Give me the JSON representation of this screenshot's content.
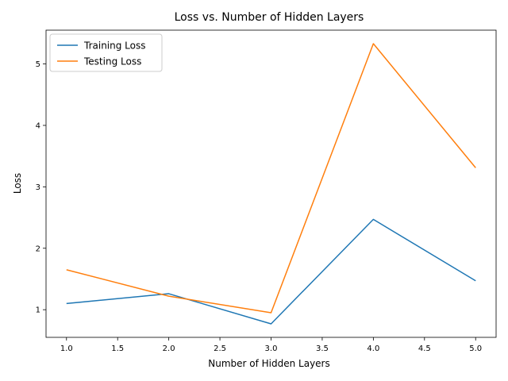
{
  "chart_data": {
    "type": "line",
    "title": "Loss vs. Number of Hidden Layers",
    "xlabel": "Number of Hidden Layers",
    "ylabel": "Loss",
    "x": [
      1,
      2,
      3,
      4,
      5
    ],
    "series": [
      {
        "name": "Training Loss",
        "color": "#1f77b4",
        "values": [
          1.1,
          1.26,
          0.77,
          2.47,
          1.47
        ]
      },
      {
        "name": "Testing Loss",
        "color": "#ff7f0e",
        "values": [
          1.65,
          1.22,
          0.95,
          5.33,
          3.31
        ]
      }
    ],
    "xlim": [
      0.8,
      5.2
    ],
    "ylim": [
      0.55,
      5.55
    ],
    "xticks": [
      1.0,
      1.5,
      2.0,
      2.5,
      3.0,
      3.5,
      4.0,
      4.5,
      5.0
    ],
    "xtick_labels": [
      "1.0",
      "1.5",
      "2.0",
      "2.5",
      "3.0",
      "3.5",
      "4.0",
      "4.5",
      "5.0"
    ],
    "yticks": [
      1,
      2,
      3,
      4,
      5
    ],
    "ytick_labels": [
      "1",
      "2",
      "3",
      "4",
      "5"
    ],
    "grid": false,
    "legend_position": "upper-left"
  }
}
